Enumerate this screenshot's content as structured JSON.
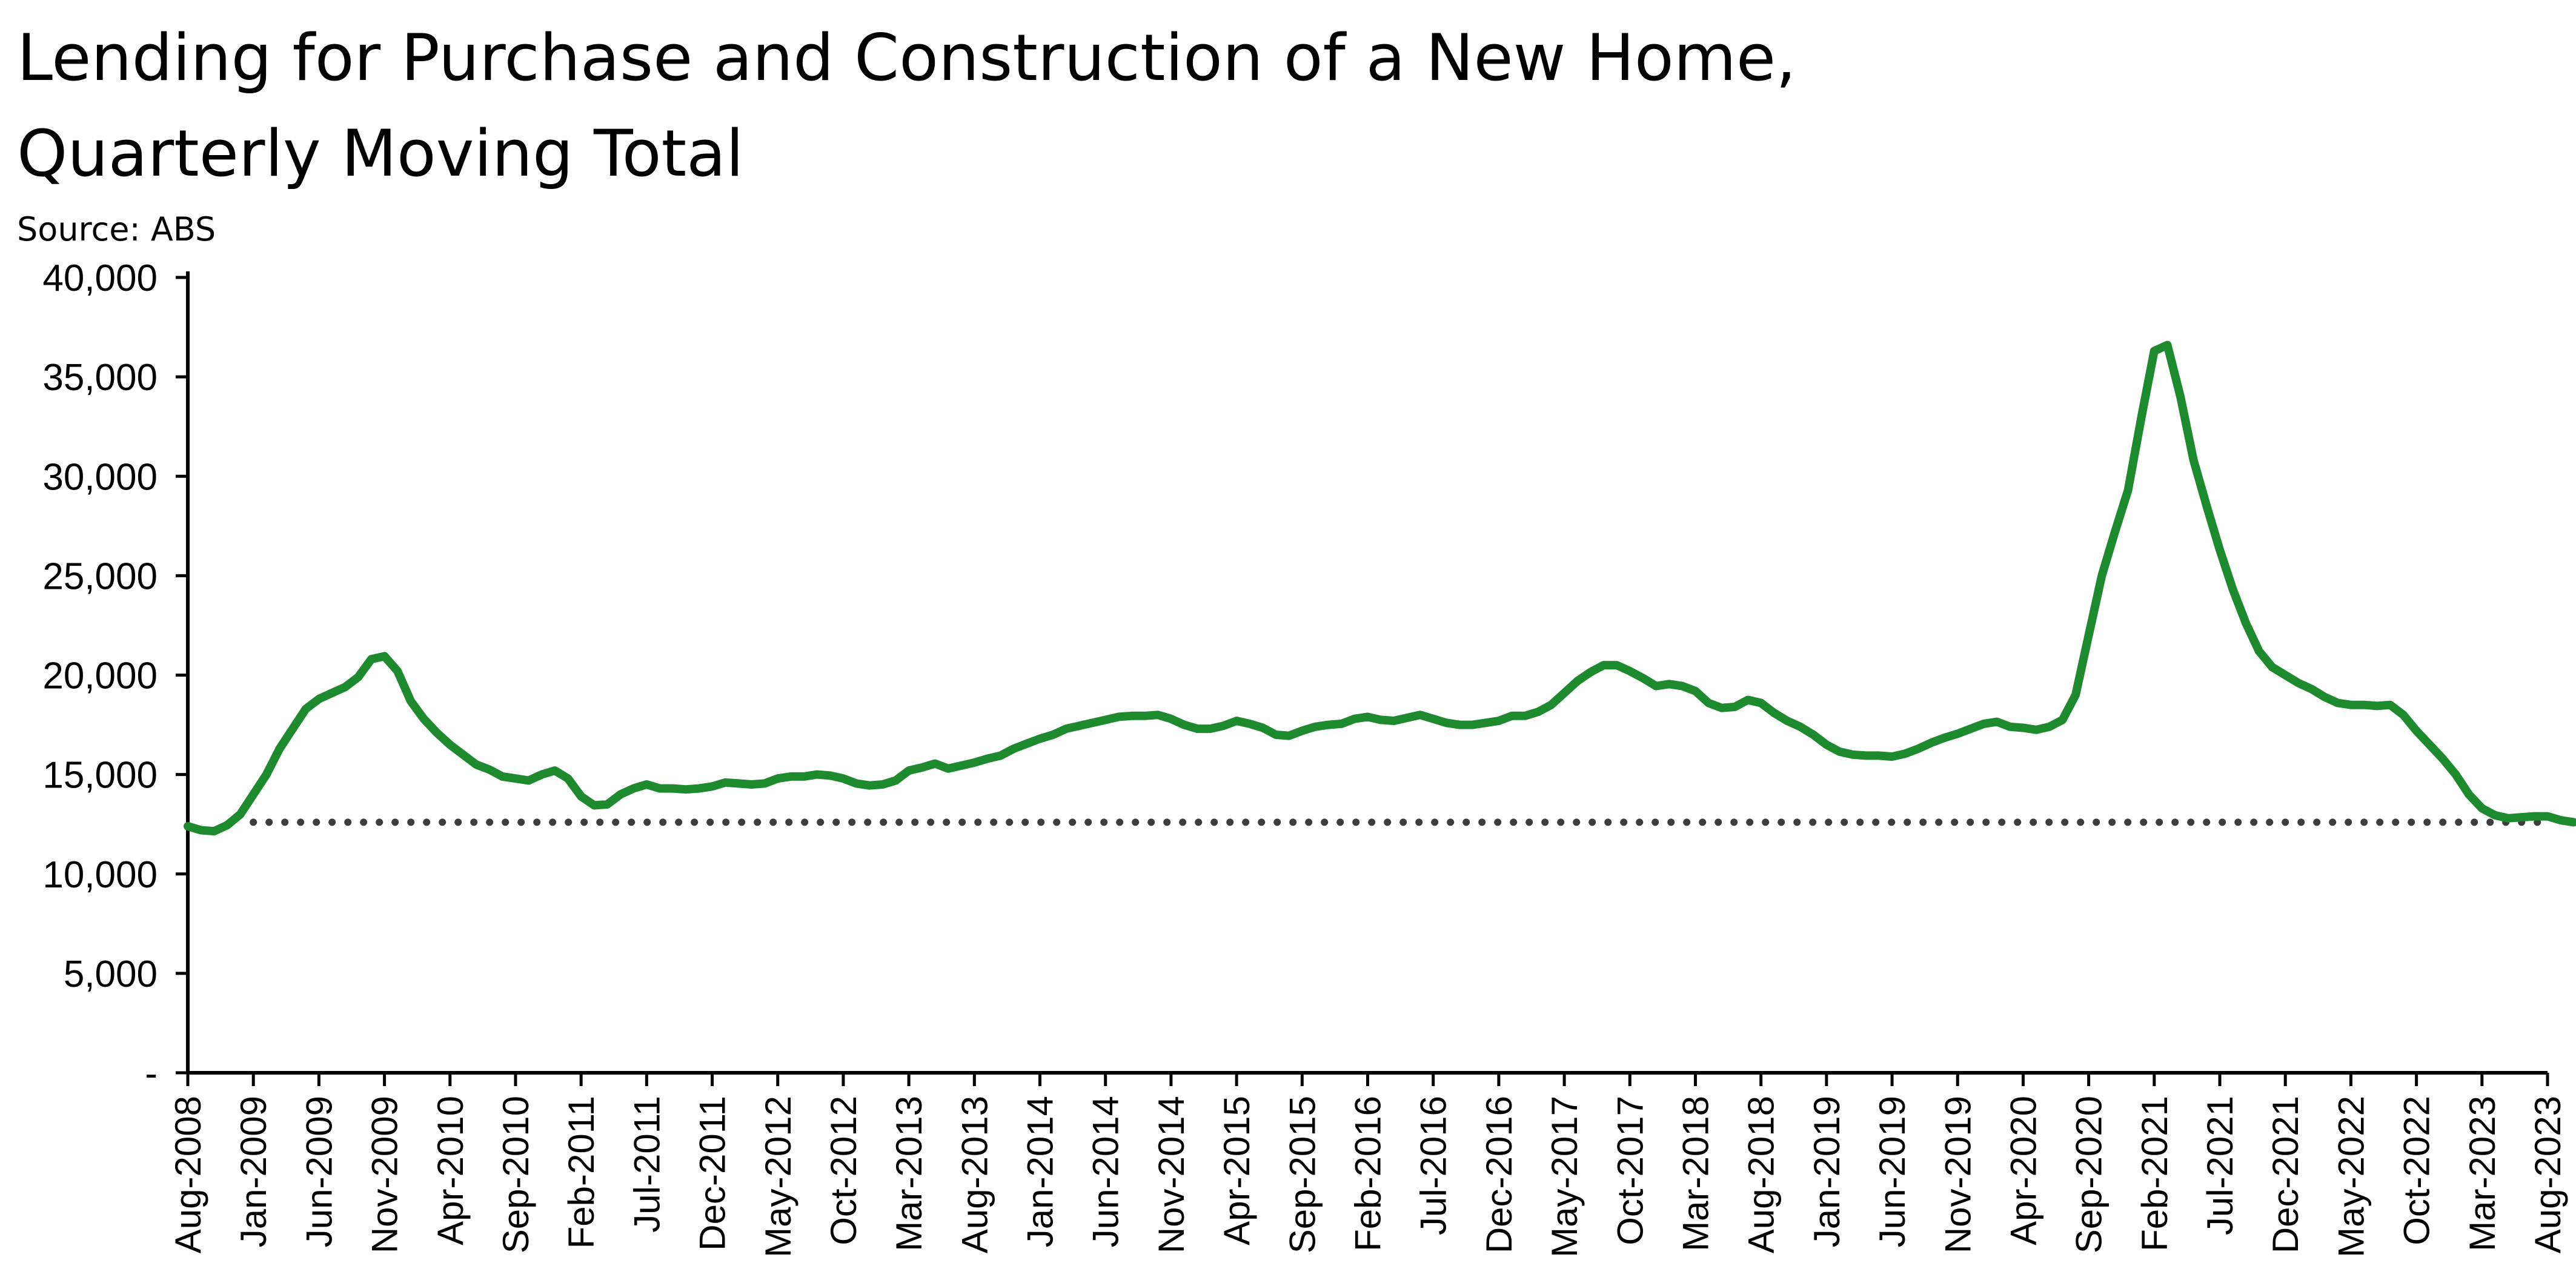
{
  "chart_data": {
    "type": "line",
    "title": "Lending for Purchase and Construction of a New Home,",
    "title_line2": "Quarterly Moving Total",
    "source": "Source: ABS",
    "xlabel": "",
    "ylabel": "",
    "ylim": [
      0,
      40000
    ],
    "yticks": [
      0,
      5000,
      10000,
      15000,
      20000,
      25000,
      30000,
      35000,
      40000
    ],
    "ytick_labels": [
      "-",
      "5,000",
      "10,000",
      "15,000",
      "20,000",
      "25,000",
      "30,000",
      "35,000",
      "40,000"
    ],
    "x_start": "Aug-2008",
    "x_end": "Aug-2023",
    "xtick_labels": [
      "Aug-2008",
      "Jan-2009",
      "Jun-2009",
      "Nov-2009",
      "Apr-2010",
      "Sep-2010",
      "Feb-2011",
      "Jul-2011",
      "Dec-2011",
      "May-2012",
      "Oct-2012",
      "Mar-2013",
      "Aug-2013",
      "Jan-2014",
      "Jun-2014",
      "Nov-2014",
      "Apr-2015",
      "Sep-2015",
      "Feb-2016",
      "Jul-2016",
      "Dec-2016",
      "May-2017",
      "Oct-2017",
      "Mar-2018",
      "Aug-2018",
      "Jan-2019",
      "Jun-2019",
      "Nov-2019",
      "Apr-2020",
      "Sep-2020",
      "Feb-2021",
      "Jul-2021",
      "Dec-2021",
      "May-2022",
      "Oct-2022",
      "Mar-2023",
      "Aug-2023"
    ],
    "grid": false,
    "legend": "none",
    "series": [
      {
        "color": "#1e8a2e",
        "style": "solid",
        "values": [
          12400,
          12200,
          12150,
          12450,
          13000,
          14000,
          15000,
          16300,
          17300,
          18300,
          18800,
          19100,
          19400,
          19900,
          20800,
          20950,
          20200,
          18700,
          17800,
          17100,
          16500,
          16000,
          15500,
          15250,
          14900,
          14800,
          14700,
          15000,
          15200,
          14800,
          13900,
          13450,
          13500,
          14000,
          14300,
          14500,
          14300,
          14300,
          14250,
          14300,
          14400,
          14600,
          14550,
          14500,
          14550,
          14800,
          14900,
          14900,
          15000,
          14950,
          14800,
          14550,
          14450,
          14500,
          14700,
          15200,
          15350,
          15550,
          15300,
          15450,
          15600,
          15800,
          15950,
          16300,
          16550,
          16800,
          17000,
          17300,
          17450,
          17600,
          17750,
          17900,
          17950,
          17950,
          18000,
          17800,
          17500,
          17300,
          17300,
          17450,
          17700,
          17550,
          17350,
          17000,
          16950,
          17200,
          17400,
          17500,
          17550,
          17800,
          17900,
          17750,
          17700,
          17850,
          18000,
          17800,
          17600,
          17500,
          17500,
          17600,
          17700,
          17950,
          17950,
          18150,
          18500,
          19100,
          19700,
          20150,
          20500,
          20500,
          20200,
          19850,
          19450,
          19550,
          19450,
          19200,
          18600,
          18350,
          18400,
          18750,
          18600,
          18100,
          17700,
          17400,
          17000,
          16500,
          16150,
          16000,
          15950,
          15950,
          15900,
          16050,
          16300,
          16600,
          16850,
          17050,
          17300,
          17550,
          17650,
          17400,
          17350,
          17250,
          17400,
          17750,
          19000,
          22000,
          25000,
          27200,
          29300,
          32900,
          36300,
          36600,
          34000,
          30800,
          28500,
          26300,
          24300,
          22600,
          21200,
          20400,
          20000,
          19600,
          19300,
          18900,
          18600,
          18500,
          18500,
          18450,
          18500,
          18000,
          17200,
          16500,
          15800,
          15000,
          14000,
          13300,
          12950,
          12800,
          12850,
          12900,
          12900,
          12700,
          12600
        ]
      },
      {
        "color": "#3d3d3d",
        "style": "dotted",
        "constant": 12600,
        "from": "Jan-2009",
        "to": "Aug-2023"
      }
    ]
  }
}
